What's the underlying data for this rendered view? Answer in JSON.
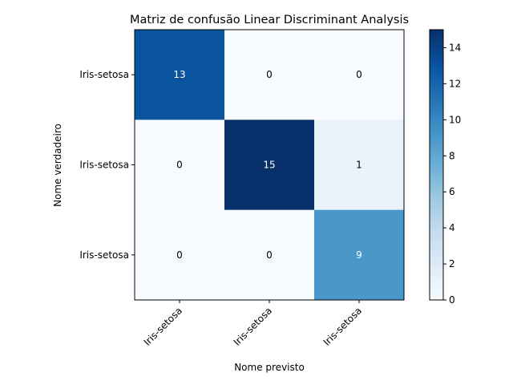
{
  "chart_data": {
    "type": "heatmap",
    "title": "Matriz de confusão Linear Discriminant Analysis",
    "xlabel": "Nome previsto",
    "ylabel": "Nome verdadeiro",
    "x_categories": [
      "Iris-setosa",
      "Iris-setosa",
      "Iris-setosa"
    ],
    "y_categories": [
      "Iris-setosa",
      "Iris-setosa",
      "Iris-setosa"
    ],
    "values": [
      [
        13,
        0,
        0
      ],
      [
        0,
        15,
        1
      ],
      [
        0,
        0,
        9
      ]
    ],
    "colormap": "Blues",
    "colorbar": {
      "min": 0,
      "max": 15,
      "ticks": [
        0,
        2,
        4,
        6,
        8,
        10,
        12,
        14
      ]
    },
    "x_tick_rotation_deg": 45,
    "grid": false
  }
}
